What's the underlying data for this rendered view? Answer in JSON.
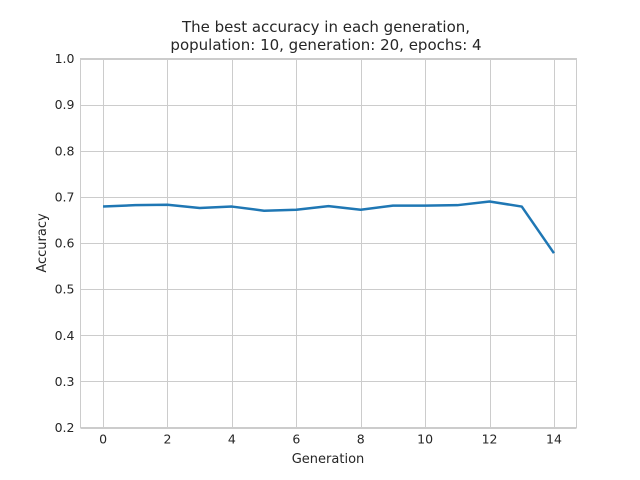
{
  "chart_data": {
    "type": "line",
    "title_lines": [
      "The best accuracy in each generation,",
      "population: 10, generation: 20, epochs: 4"
    ],
    "xlabel": "Generation",
    "ylabel": "Accuracy",
    "xlim": [
      -0.7,
      14.7
    ],
    "ylim": [
      0.2,
      1.0
    ],
    "xticks": [
      0,
      2,
      4,
      6,
      8,
      10,
      12,
      14
    ],
    "xtick_labels": [
      "0",
      "2",
      "4",
      "6",
      "8",
      "10",
      "12",
      "14"
    ],
    "yticks": [
      0.2,
      0.3,
      0.4,
      0.5,
      0.6,
      0.7,
      0.8,
      0.9,
      1.0
    ],
    "ytick_labels": [
      "0.2",
      "0.3",
      "0.4",
      "0.5",
      "0.6",
      "0.7",
      "0.8",
      "0.9",
      "1.0"
    ],
    "grid": true,
    "series": [
      {
        "color": "#1f77b4",
        "x": [
          0,
          1,
          2,
          3,
          4,
          5,
          6,
          7,
          8,
          9,
          10,
          11,
          12,
          13,
          14
        ],
        "values": [
          0.679,
          0.682,
          0.683,
          0.676,
          0.679,
          0.67,
          0.672,
          0.68,
          0.672,
          0.681,
          0.681,
          0.682,
          0.69,
          0.679,
          0.578
        ]
      }
    ]
  }
}
